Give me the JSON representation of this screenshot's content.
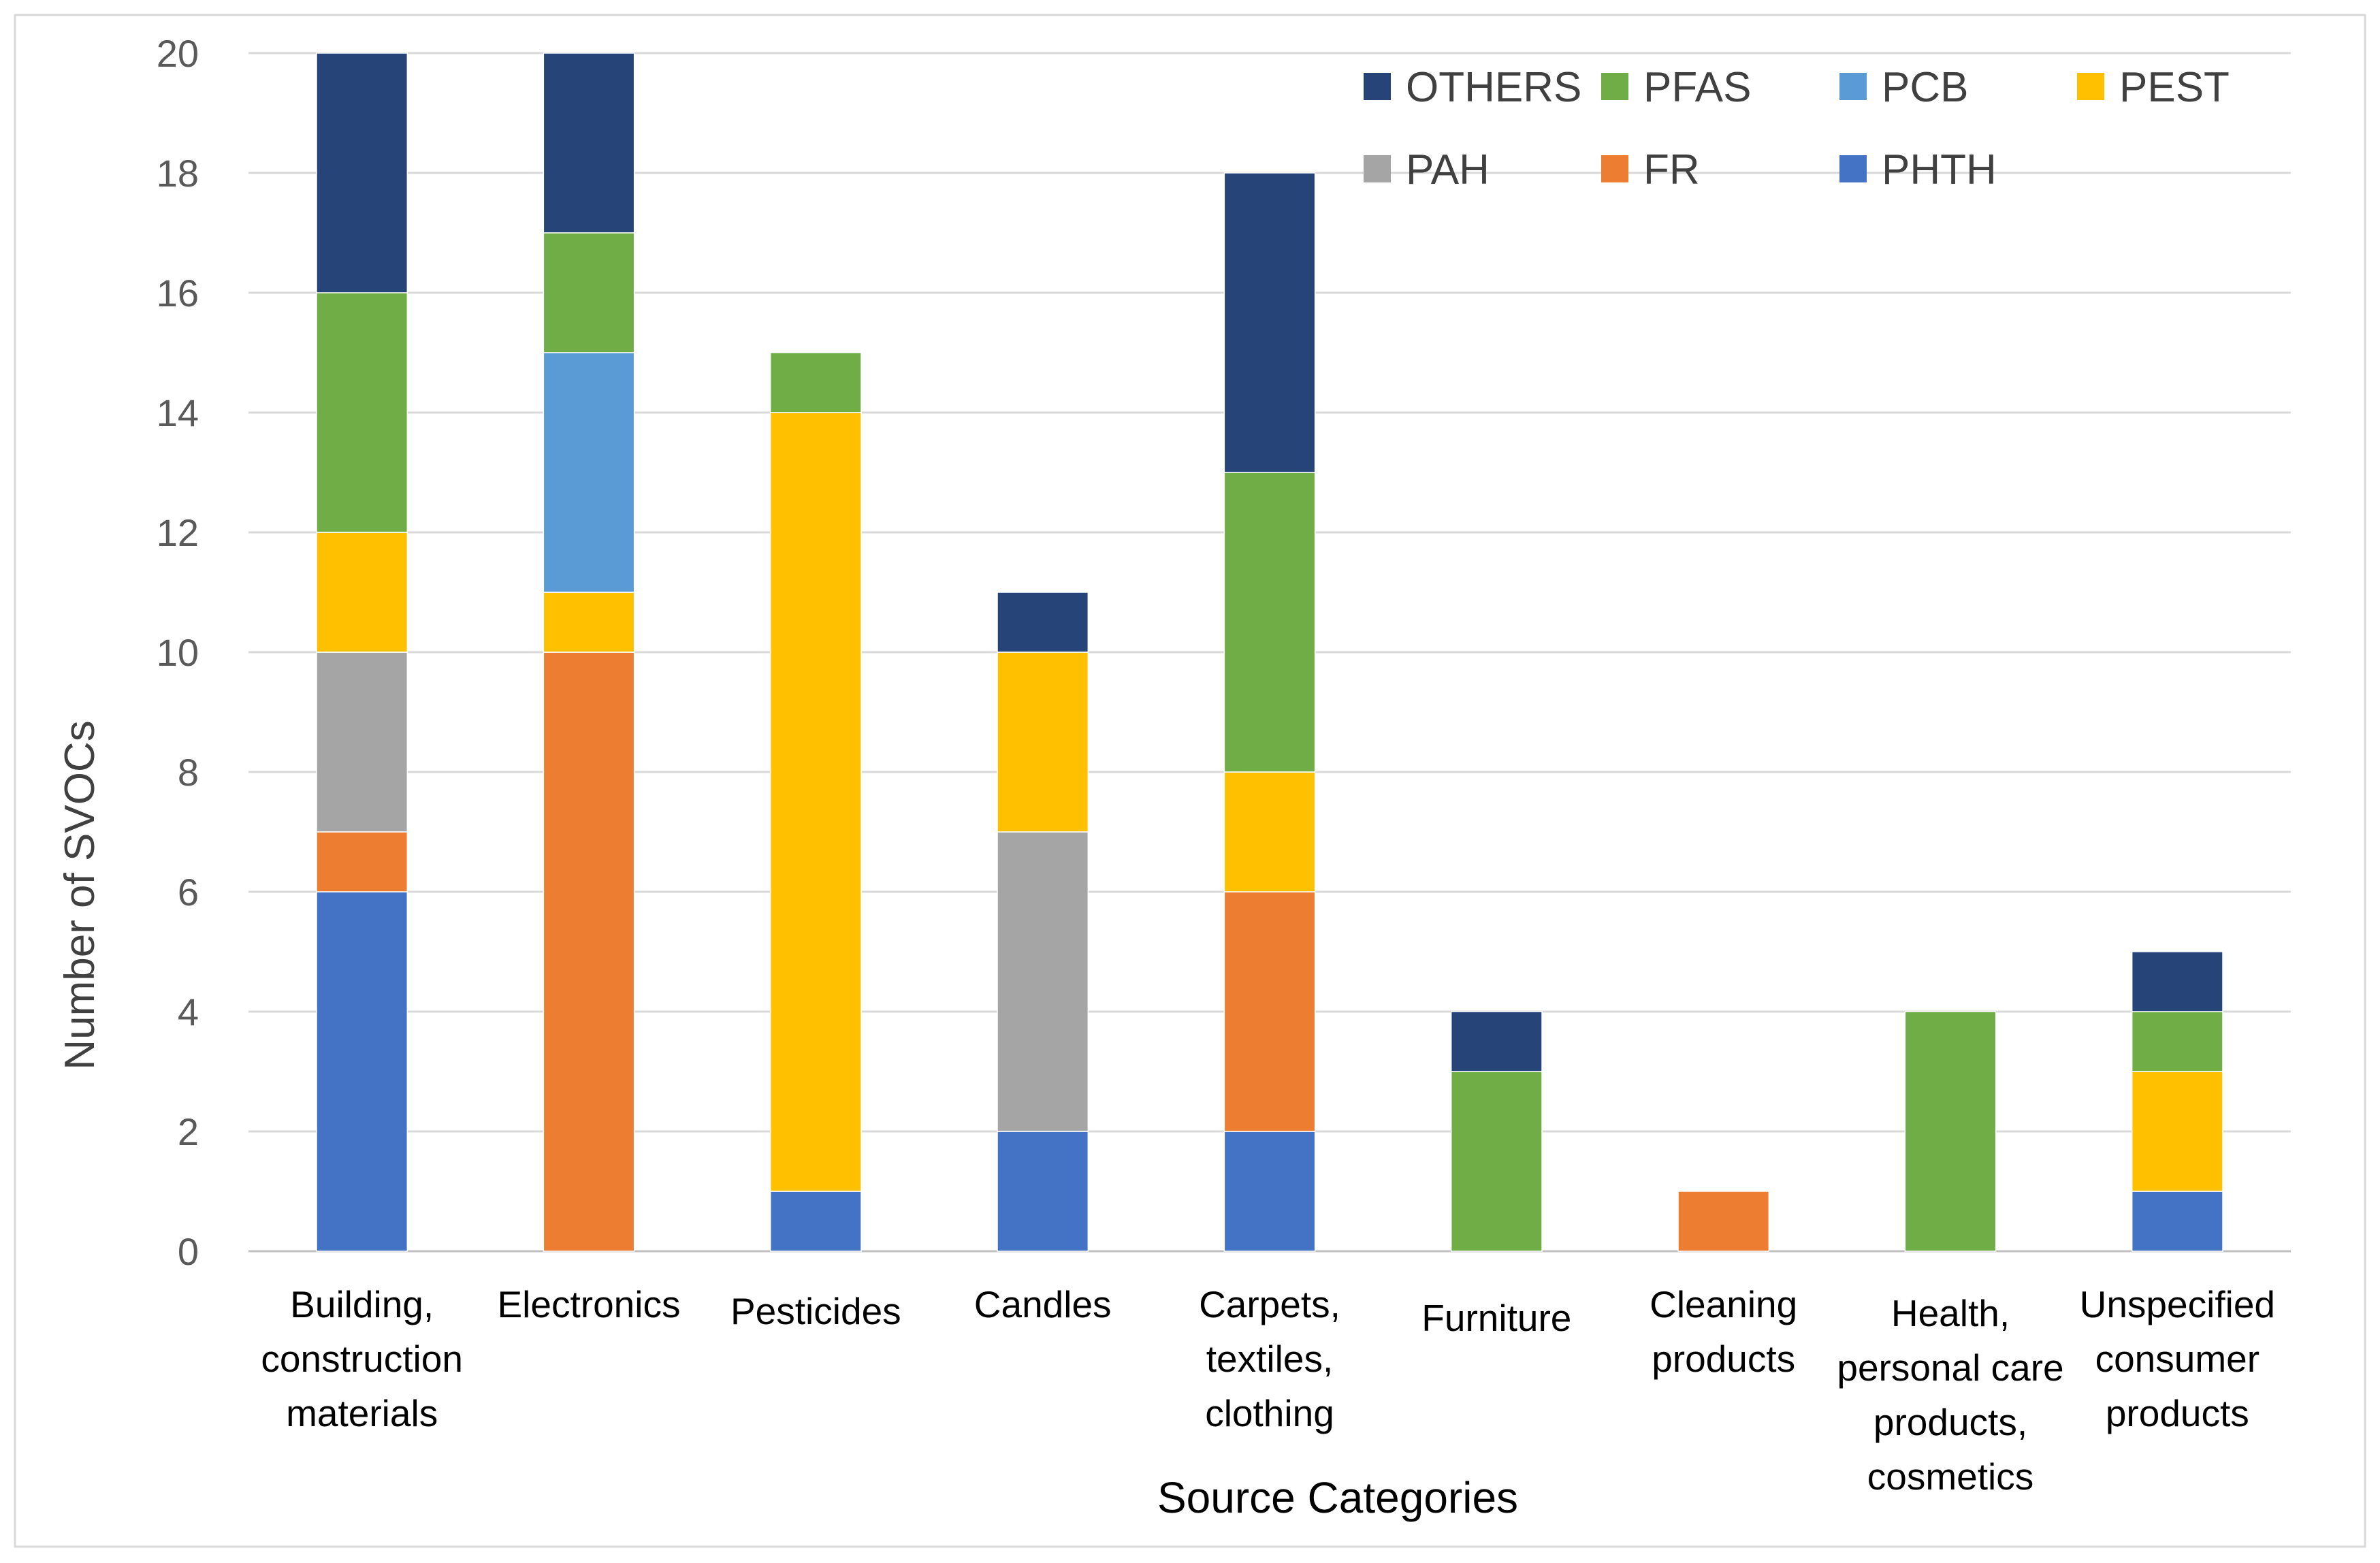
{
  "chart_data": {
    "type": "bar",
    "stacked": true,
    "title": "",
    "xlabel": "Source Categories",
    "ylabel": "Number of SVOCs",
    "ylim": [
      0,
      20
    ],
    "yticks": [
      "0",
      "2",
      "4",
      "6",
      "8",
      "10",
      "12",
      "14",
      "16",
      "18",
      "20"
    ],
    "grid": true,
    "legend_position": "top-right",
    "categories": [
      [
        "Building,",
        "construction",
        "materials"
      ],
      [
        "Electronics"
      ],
      [
        "Pesticides"
      ],
      [
        "Candles"
      ],
      [
        "Carpets,",
        "textiles,",
        "clothing"
      ],
      [
        "Furniture"
      ],
      [
        "Cleaning",
        "products"
      ],
      [
        "Health,",
        "personal care",
        "products,",
        "cosmetics"
      ],
      [
        "Unspecified",
        "consumer",
        "products"
      ]
    ],
    "series": [
      {
        "name": "PHTH",
        "color": "#4472C4",
        "values": [
          6,
          0,
          1,
          2,
          2,
          0,
          0,
          0,
          1
        ]
      },
      {
        "name": "FR",
        "color": "#ED7D31",
        "values": [
          1,
          10,
          0,
          0,
          4,
          0,
          1,
          0,
          0
        ]
      },
      {
        "name": "PAH",
        "color": "#A5A5A5",
        "values": [
          3,
          0,
          0,
          5,
          0,
          0,
          0,
          0,
          0
        ]
      },
      {
        "name": "PEST",
        "color": "#FFC000",
        "values": [
          2,
          1,
          13,
          3,
          2,
          0,
          0,
          0,
          2
        ]
      },
      {
        "name": "PCB",
        "color": "#5B9BD5",
        "values": [
          0,
          4,
          0,
          0,
          0,
          0,
          0,
          0,
          0
        ]
      },
      {
        "name": "PFAS",
        "color": "#70AD47",
        "values": [
          4,
          2,
          1,
          0,
          5,
          3,
          0,
          4,
          1
        ]
      },
      {
        "name": "OTHERS",
        "color": "#264478",
        "values": [
          4,
          3,
          0,
          1,
          5,
          1,
          0,
          0,
          1
        ]
      }
    ],
    "legend_order": [
      [
        "OTHERS",
        "PFAS",
        "PCB",
        "PEST"
      ],
      [
        "PAH",
        "FR",
        "PHTH"
      ]
    ]
  }
}
